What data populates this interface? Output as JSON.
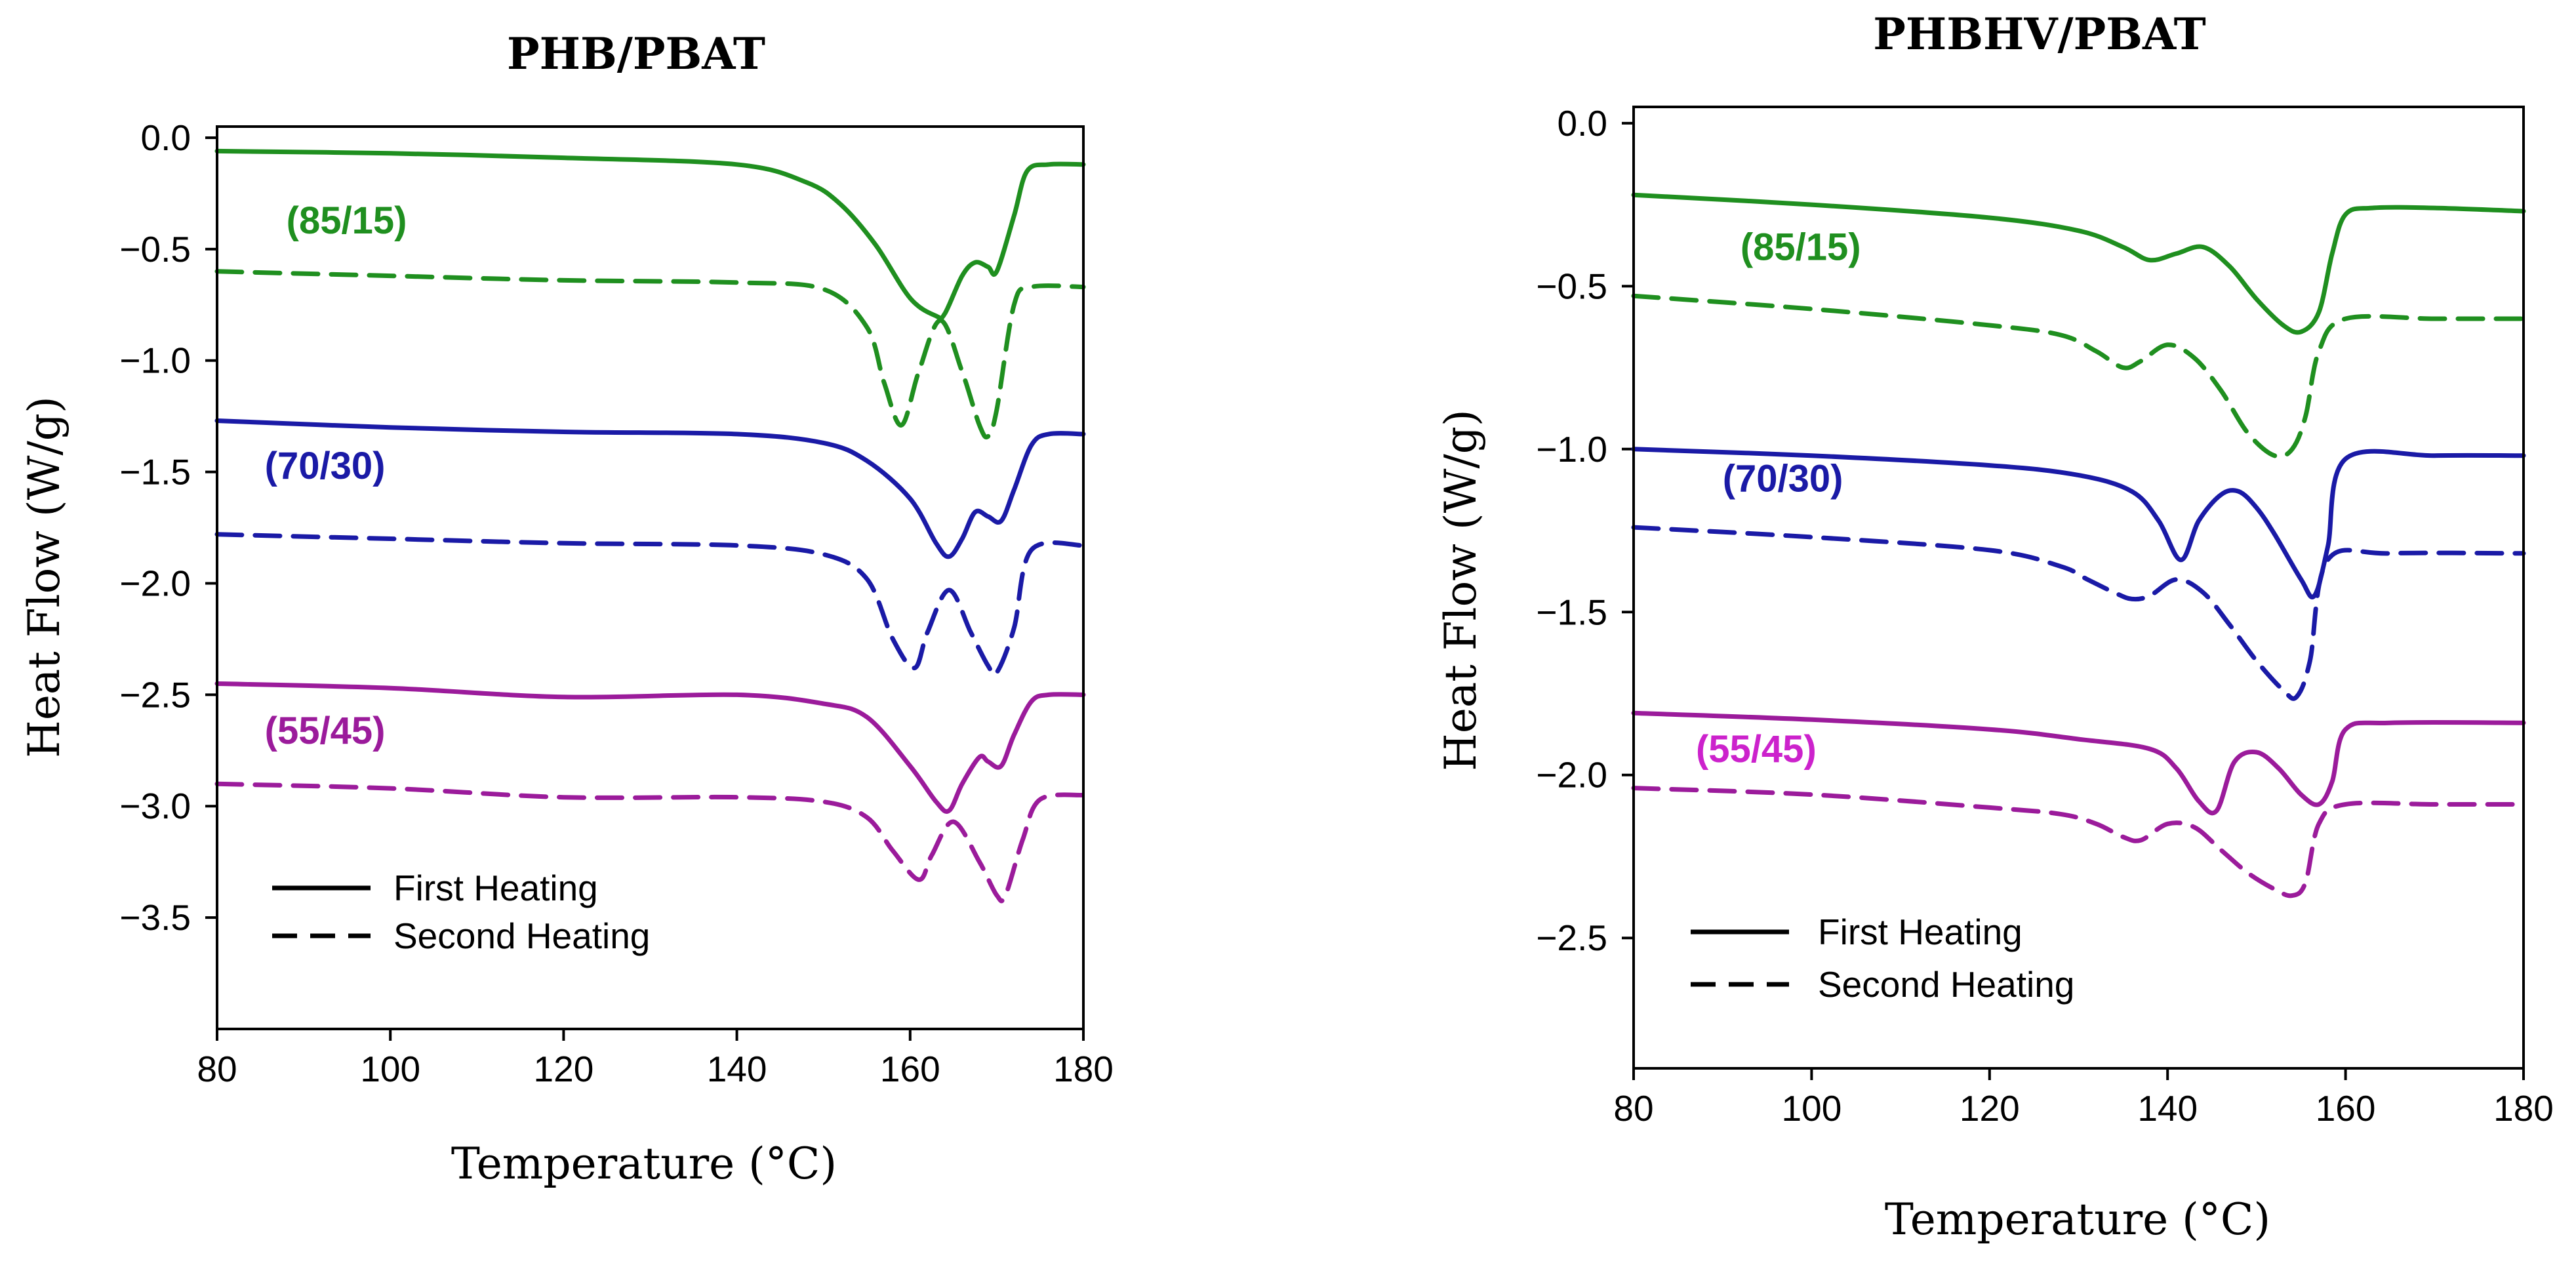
{
  "colors": {
    "green": "#1f8f1f",
    "blue": "#1a1aa6",
    "purple": "#9b1b9b",
    "magenta": "#cc22cc"
  },
  "legend": {
    "solid": "First Heating",
    "dashed": "Second Heating"
  },
  "chart_data": [
    {
      "id": "left",
      "type": "line",
      "title": "PHB/PBAT",
      "xlabel": "Temperature (°C)",
      "ylabel": "Heat Flow (W/g)",
      "xlim": [
        80,
        180
      ],
      "ylim": [
        -4.0,
        0.05
      ],
      "xticks": [
        80,
        100,
        120,
        140,
        160,
        180
      ],
      "yticks": [
        0.0,
        -0.5,
        -1.0,
        -1.5,
        -2.0,
        -2.5,
        -3.0,
        -3.5
      ],
      "ytick_labels": [
        "0.0",
        "-0.5",
        "-1.0",
        "-1.5",
        "-2.0",
        "-2.5",
        "-3.0",
        "-3.5"
      ],
      "series_labels": [
        {
          "text": "(85/15)",
          "x": 88,
          "y": -0.43,
          "color": "#1f8f1f"
        },
        {
          "text": "(70/30)",
          "x": 85.5,
          "y": -1.53,
          "color": "#1a1aa6"
        },
        {
          "text": "(55/45)",
          "x": 85.5,
          "y": -2.72,
          "color": "#9b1b9b"
        }
      ],
      "series": [
        {
          "name": "(85/15) First Heating",
          "color": "#1f8f1f",
          "dash": false,
          "x": [
            80,
            100,
            120,
            140,
            148,
            152,
            156,
            160,
            163,
            164,
            166,
            167.5,
            169,
            170,
            172,
            173.5,
            176,
            180
          ],
          "y": [
            -0.06,
            -0.07,
            -0.09,
            -0.12,
            -0.2,
            -0.3,
            -0.48,
            -0.72,
            -0.8,
            -0.79,
            -0.62,
            -0.56,
            -0.58,
            -0.6,
            -0.35,
            -0.15,
            -0.12,
            -0.12
          ]
        },
        {
          "name": "(85/15) Second Heating",
          "color": "#1f8f1f",
          "dash": true,
          "x": [
            80,
            100,
            120,
            140,
            150,
            155,
            157,
            159,
            161,
            163.5,
            166,
            168,
            169,
            170,
            172,
            174,
            180
          ],
          "y": [
            -0.6,
            -0.62,
            -0.64,
            -0.65,
            -0.68,
            -0.85,
            -1.1,
            -1.29,
            -1.05,
            -0.82,
            -1.05,
            -1.29,
            -1.34,
            -1.22,
            -0.75,
            -0.67,
            -0.67
          ]
        },
        {
          "name": "(70/30) First Heating",
          "color": "#1a1aa6",
          "dash": false,
          "x": [
            80,
            100,
            120,
            140,
            150,
            155,
            160,
            163,
            164.5,
            166,
            167.5,
            169,
            170.5,
            172,
            174,
            176,
            180
          ],
          "y": [
            -1.27,
            -1.3,
            -1.32,
            -1.33,
            -1.37,
            -1.45,
            -1.62,
            -1.82,
            -1.88,
            -1.8,
            -1.68,
            -1.7,
            -1.72,
            -1.58,
            -1.38,
            -1.33,
            -1.33
          ]
        },
        {
          "name": "(70/30) Second Heating",
          "color": "#1a1aa6",
          "dash": true,
          "x": [
            80,
            100,
            120,
            140,
            150,
            155,
            158,
            160.5,
            162,
            164.5,
            167,
            169,
            170,
            172,
            174,
            180
          ],
          "y": [
            -1.78,
            -1.8,
            -1.82,
            -1.83,
            -1.87,
            -1.98,
            -2.25,
            -2.38,
            -2.22,
            -2.03,
            -2.22,
            -2.37,
            -2.4,
            -2.2,
            -1.85,
            -1.83
          ]
        },
        {
          "name": "(55/45) First Heating",
          "color": "#9b1b9b",
          "dash": false,
          "x": [
            80,
            100,
            120,
            140,
            150,
            155,
            160,
            163,
            164.5,
            166,
            168,
            169,
            170.5,
            172,
            174,
            176,
            180
          ],
          "y": [
            -2.45,
            -2.47,
            -2.51,
            -2.5,
            -2.54,
            -2.6,
            -2.82,
            -2.98,
            -3.02,
            -2.9,
            -2.78,
            -2.8,
            -2.82,
            -2.68,
            -2.53,
            -2.5,
            -2.5
          ]
        },
        {
          "name": "(55/45) Second Heating",
          "color": "#9b1b9b",
          "dash": true,
          "x": [
            80,
            100,
            120,
            140,
            150,
            155,
            158,
            161,
            162.5,
            165,
            168,
            170,
            171,
            173,
            175,
            180
          ],
          "y": [
            -2.9,
            -2.92,
            -2.96,
            -2.96,
            -2.98,
            -3.05,
            -3.2,
            -3.33,
            -3.22,
            -3.07,
            -3.25,
            -3.4,
            -3.4,
            -3.15,
            -2.97,
            -2.95
          ]
        }
      ]
    },
    {
      "id": "right",
      "type": "line",
      "title": "PHBHV/PBAT",
      "xlabel": "Temperature (°C)",
      "ylabel": "Heat Flow (W/g)",
      "xlim": [
        80,
        180
      ],
      "ylim": [
        -2.9,
        0.05
      ],
      "xticks": [
        80,
        100,
        120,
        140,
        160,
        180
      ],
      "yticks": [
        0.0,
        -0.5,
        -1.0,
        -1.5,
        -2.0,
        -2.5
      ],
      "ytick_labels": [
        "0.0",
        "-0.5",
        "-1.0",
        "-1.5",
        "-2.0",
        "-2.5"
      ],
      "series_labels": [
        {
          "text": "(85/15)",
          "x": 92,
          "y": -0.42,
          "color": "#1f8f1f"
        },
        {
          "text": "(70/30)",
          "x": 90,
          "y": -1.13,
          "color": "#1a1aa6"
        },
        {
          "text": "(55/45)",
          "x": 87,
          "y": -1.96,
          "color": "#cc22cc"
        }
      ],
      "series": [
        {
          "name": "(85/15) First Heating",
          "color": "#1f8f1f",
          "dash": false,
          "x": [
            80,
            100,
            120,
            130,
            135,
            138,
            141,
            144,
            147,
            150,
            153,
            155,
            157,
            158.5,
            160,
            163,
            170,
            180
          ],
          "y": [
            -0.22,
            -0.25,
            -0.29,
            -0.33,
            -0.38,
            -0.42,
            -0.4,
            -0.38,
            -0.44,
            -0.54,
            -0.62,
            -0.64,
            -0.58,
            -0.4,
            -0.28,
            -0.26,
            -0.26,
            -0.27
          ]
        },
        {
          "name": "(85/15) Second Heating",
          "color": "#1f8f1f",
          "dash": true,
          "x": [
            80,
            100,
            120,
            128,
            132,
            135,
            137,
            140,
            143,
            146,
            149,
            152,
            154,
            155.5,
            157,
            160,
            170,
            180
          ],
          "y": [
            -0.53,
            -0.57,
            -0.62,
            -0.65,
            -0.7,
            -0.75,
            -0.73,
            -0.68,
            -0.72,
            -0.82,
            -0.95,
            -1.02,
            -1.0,
            -0.9,
            -0.7,
            -0.6,
            -0.6,
            -0.6
          ]
        },
        {
          "name": "(70/30) First Heating",
          "color": "#1a1aa6",
          "dash": false,
          "x": [
            80,
            100,
            120,
            130,
            136,
            139,
            141.5,
            143.5,
            146,
            148,
            150,
            152,
            155,
            156.5,
            158,
            160,
            170,
            180
          ],
          "y": [
            -1.0,
            -1.02,
            -1.05,
            -1.08,
            -1.13,
            -1.22,
            -1.34,
            -1.22,
            -1.14,
            -1.13,
            -1.18,
            -1.26,
            -1.4,
            -1.45,
            -1.3,
            -1.03,
            -1.02,
            -1.02
          ]
        },
        {
          "name": "(70/30) Second Heating",
          "color": "#1a1aa6",
          "dash": true,
          "x": [
            80,
            100,
            120,
            128,
            131,
            134,
            136,
            138,
            141,
            144,
            147,
            150,
            153,
            154.5,
            156,
            158,
            165,
            180
          ],
          "y": [
            -1.24,
            -1.27,
            -1.31,
            -1.36,
            -1.4,
            -1.44,
            -1.46,
            -1.45,
            -1.4,
            -1.44,
            -1.54,
            -1.65,
            -1.74,
            -1.76,
            -1.65,
            -1.34,
            -1.32,
            -1.32
          ]
        },
        {
          "name": "(55/45) First Heating",
          "color": "#9b1b9b",
          "dash": false,
          "x": [
            80,
            100,
            120,
            130,
            138,
            141,
            143.5,
            145.5,
            147.5,
            150,
            152.5,
            155,
            157,
            158.5,
            160,
            165,
            180
          ],
          "y": [
            -1.81,
            -1.83,
            -1.86,
            -1.89,
            -1.92,
            -1.98,
            -2.08,
            -2.11,
            -1.96,
            -1.93,
            -1.98,
            -2.06,
            -2.09,
            -2.02,
            -1.86,
            -1.84,
            -1.84
          ]
        },
        {
          "name": "(55/45) Second Heating",
          "color": "#9b1b9b",
          "dash": true,
          "x": [
            80,
            100,
            120,
            128,
            132,
            135,
            137,
            140,
            143,
            146,
            149,
            152,
            154,
            155.5,
            157,
            160,
            170,
            180
          ],
          "y": [
            -2.04,
            -2.06,
            -2.1,
            -2.12,
            -2.15,
            -2.19,
            -2.2,
            -2.15,
            -2.16,
            -2.23,
            -2.3,
            -2.35,
            -2.37,
            -2.33,
            -2.15,
            -2.09,
            -2.09,
            -2.09
          ]
        }
      ]
    }
  ]
}
